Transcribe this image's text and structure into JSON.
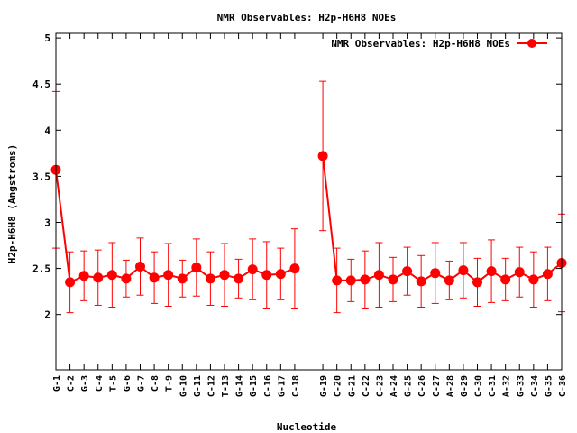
{
  "chart_data": {
    "type": "line",
    "title": "NMR Observables: H2p-H6H8 NOEs",
    "xlabel": "Nucleotide",
    "ylabel": "H2p-H6H8 (Angstroms)",
    "ylim": [
      1.4,
      5.05
    ],
    "yticks": [
      2,
      2.5,
      3,
      3.5,
      4,
      4.5,
      5
    ],
    "ytick_labels": [
      "2",
      "2.5",
      "3",
      "3.5",
      "4",
      "4.5",
      "5"
    ],
    "grid": false,
    "legend_position": "top-right",
    "series": [
      {
        "name": "NMR Observables: H2p-H6H8 NOEs",
        "color": "#ff0000",
        "marker": "circle",
        "error_bars": true,
        "segments": [
          {
            "categories": [
              "G-1",
              "C-2",
              "G-3",
              "C-4",
              "T-5",
              "G-6",
              "G-7",
              "C-8",
              "T-9",
              "G-10",
              "G-11",
              "C-12",
              "T-13",
              "G-14",
              "G-15",
              "C-16",
              "G-17",
              "C-18"
            ],
            "values": [
              3.57,
              2.35,
              2.42,
              2.4,
              2.43,
              2.39,
              2.52,
              2.4,
              2.43,
              2.39,
              2.51,
              2.39,
              2.43,
              2.39,
              2.49,
              2.43,
              2.44,
              2.5
            ],
            "errors": [
              0.85,
              0.33,
              0.27,
              0.3,
              0.35,
              0.2,
              0.31,
              0.28,
              0.34,
              0.2,
              0.31,
              0.29,
              0.34,
              0.21,
              0.33,
              0.36,
              0.28,
              0.43
            ]
          },
          {
            "categories": [
              "G-19",
              "C-20",
              "G-21",
              "C-22",
              "C-23",
              "A-24",
              "G-25",
              "C-26",
              "C-27",
              "A-28",
              "G-29",
              "C-30",
              "C-31",
              "A-32",
              "G-33",
              "C-34",
              "G-35",
              "C-36"
            ],
            "values": [
              3.72,
              2.37,
              2.37,
              2.38,
              2.43,
              2.38,
              2.47,
              2.36,
              2.45,
              2.37,
              2.48,
              2.35,
              2.47,
              2.38,
              2.46,
              2.38,
              2.44,
              2.56
            ],
            "errors": [
              0.81,
              0.35,
              0.23,
              0.31,
              0.35,
              0.24,
              0.26,
              0.28,
              0.33,
              0.21,
              0.3,
              0.26,
              0.34,
              0.23,
              0.27,
              0.3,
              0.29,
              0.53
            ]
          }
        ]
      }
    ]
  }
}
